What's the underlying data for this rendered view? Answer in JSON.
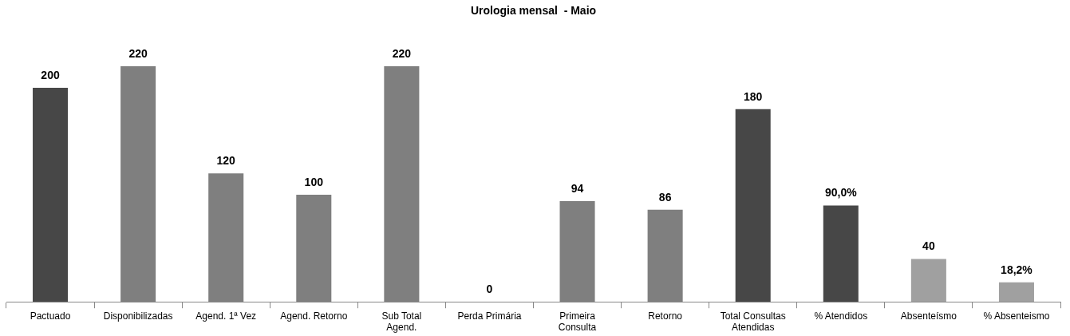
{
  "chart_data": {
    "type": "bar",
    "title": "Urologia mensal  - Maio",
    "categories": [
      "Pactuado",
      "Disponibilizadas",
      "Agend. 1ª Vez",
      "Agend. Retorno",
      "Sub Total Agend.",
      "Perda Primária",
      "Primeira Consulta",
      "Retorno",
      "Total Consultas Atendidas",
      "% Atendidos",
      "Absenteísmo",
      "% Absenteismo"
    ],
    "values": [
      200,
      220,
      120,
      100,
      220,
      0,
      94,
      86,
      180,
      90,
      40,
      18.2
    ],
    "value_labels": [
      "200",
      "220",
      "120",
      "100",
      "220",
      "0",
      "94",
      "86",
      "180",
      "90,0%",
      "40",
      "18,2%"
    ],
    "colors": [
      "#474747",
      "#7f7f7f",
      "#7f7f7f",
      "#7f7f7f",
      "#7f7f7f",
      "#7f7f7f",
      "#7f7f7f",
      "#7f7f7f",
      "#474747",
      "#474747",
      "#a0a0a0",
      "#a0a0a0"
    ],
    "grid": false,
    "legend": false
  }
}
